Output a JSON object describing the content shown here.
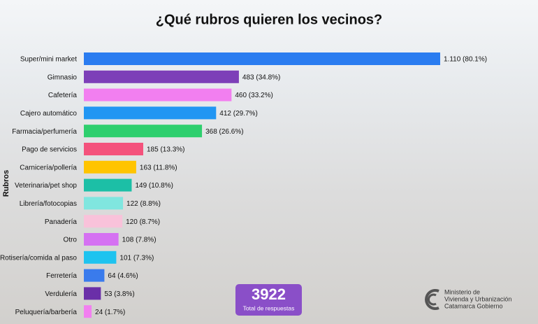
{
  "chart_data": {
    "type": "barh",
    "title": "¿Qué rubros quieren los vecinos?",
    "y_label": "Rubros",
    "categories": [
      "Super/mini market",
      "Gimnasio",
      "Cafetería",
      "Cajero automático",
      "Farmacia/perfumería",
      "Pago de servicios",
      "Carnicería/pollería",
      "Veterinaria/pet shop",
      "Librería/fotocopias",
      "Panadería",
      "Otro",
      "Rotisería/comida al paso",
      "Ferretería",
      "Verdulería",
      "Peluquería/barbería"
    ],
    "values": [
      1110,
      483,
      460,
      412,
      368,
      185,
      163,
      149,
      122,
      120,
      108,
      101,
      64,
      53,
      24
    ],
    "value_labels": [
      "1.110 (80.1%)",
      "483 (34.8%)",
      "460 (33.2%)",
      "412 (29.7%)",
      "368 (26.6%)",
      "185 (13.3%)",
      "163 (11.8%)",
      "149 (10.8%)",
      "122 (8.8%)",
      "120 (8.7%)",
      "108 (7.8%)",
      "101 (7.3%)",
      "64 (4.6%)",
      "53 (3.8%)",
      "24 (1.7%)"
    ],
    "colors": [
      "#2a7cf0",
      "#7d3fb8",
      "#f27ff0",
      "#2196f3",
      "#2ecf6e",
      "#f4527c",
      "#ffc400",
      "#1cbfa6",
      "#80e6df",
      "#f9c2da",
      "#d571f2",
      "#1ec3ef",
      "#3a7bec",
      "#6a2fa8",
      "#f27ff0"
    ],
    "total": {
      "value": 3922,
      "label": "Total de respuestas"
    },
    "logo": [
      "Ministerio de",
      "Vivienda y Urbanización",
      "Catamarca Gobierno"
    ]
  }
}
